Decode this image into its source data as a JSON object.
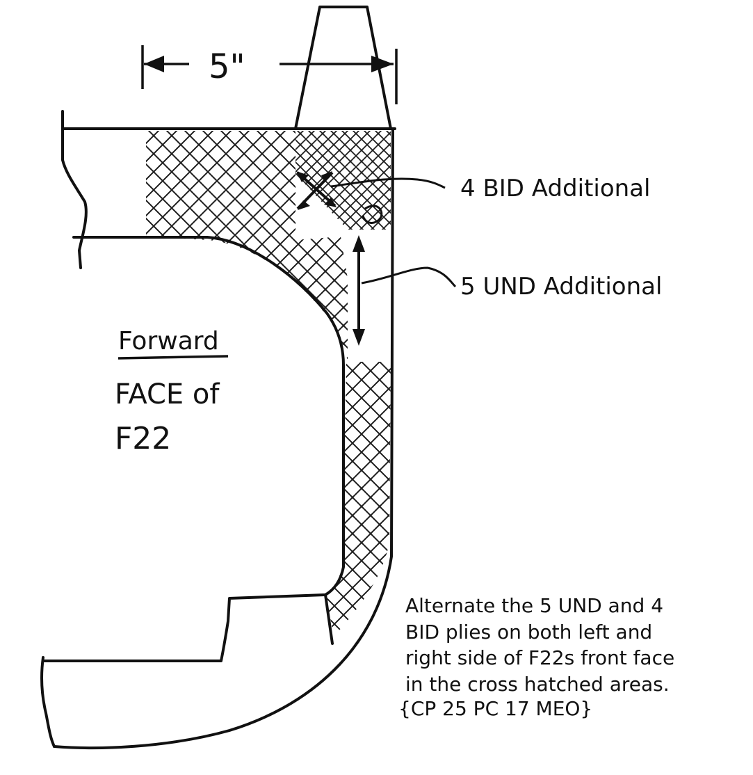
{
  "dimension": {
    "label": "5\""
  },
  "callouts": {
    "bid": "4 BID Additional",
    "und": "5 UND Additional"
  },
  "face_label": {
    "line1": "Forward",
    "line2": "FACE of",
    "line3": "F22"
  },
  "note": {
    "lines": [
      "Alternate the 5 UND and 4",
      "BID plies on both left and",
      "right side of F22s front face",
      "in the cross hatched areas."
    ],
    "reference": "{CP 25 PC 17 MEO}"
  },
  "colors": {
    "ink": "#111111",
    "paper": "#ffffff"
  }
}
